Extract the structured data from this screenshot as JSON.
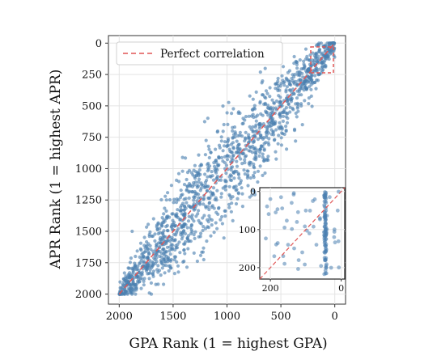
{
  "chart_data": {
    "type": "scatter",
    "xlabel": "GPA Rank (1 = highest GPA)",
    "ylabel": "APR Rank (1 = highest APR)",
    "xlim": [
      2100,
      -100
    ],
    "ylim": [
      2080,
      -60
    ],
    "x_inverted": true,
    "y_inverted": true,
    "xticks": [
      2000,
      1500,
      1000,
      500,
      0
    ],
    "yticks": [
      0,
      250,
      500,
      750,
      1000,
      1250,
      1500,
      1750,
      2000
    ],
    "grid": true,
    "legend": {
      "position": "top-left",
      "entries": [
        {
          "label": "Perfect correlation",
          "style": "dashed",
          "color": "#e05555"
        }
      ]
    },
    "series": [
      {
        "color": "#4a7fb0",
        "points": [
          [
            1990,
            1995
          ],
          [
            1960,
            1930
          ],
          [
            1900,
            1870
          ],
          [
            1850,
            1700
          ],
          [
            1820,
            1880
          ],
          [
            1750,
            1620
          ],
          [
            1700,
            1790
          ],
          [
            1650,
            1450
          ],
          [
            1600,
            1560
          ],
          [
            1550,
            1380
          ],
          [
            1500,
            1490
          ],
          [
            1450,
            1250
          ],
          [
            1400,
            1330
          ],
          [
            1350,
            1120
          ],
          [
            1300,
            1230
          ],
          [
            1250,
            980
          ],
          [
            1200,
            1110
          ],
          [
            1150,
            870
          ],
          [
            1100,
            1000
          ],
          [
            1050,
            780
          ],
          [
            1000,
            900
          ],
          [
            950,
            700
          ],
          [
            900,
            820
          ],
          [
            850,
            600
          ],
          [
            800,
            730
          ],
          [
            750,
            520
          ],
          [
            700,
            650
          ],
          [
            650,
            430
          ],
          [
            600,
            560
          ],
          [
            550,
            360
          ],
          [
            500,
            470
          ],
          [
            450,
            280
          ],
          [
            400,
            390
          ],
          [
            350,
            200
          ],
          [
            300,
            300
          ],
          [
            250,
            130
          ],
          [
            200,
            220
          ],
          [
            150,
            70
          ],
          [
            100,
            150
          ],
          [
            60,
            30
          ],
          [
            1880,
            1500
          ],
          [
            1400,
            1650
          ],
          [
            1100,
            1350
          ],
          [
            700,
            900
          ],
          [
            300,
            650
          ]
        ]
      },
      {
        "name": "Perfect correlation",
        "type": "line",
        "x": [
          2000,
          0
        ],
        "y": [
          2000,
          0
        ]
      }
    ],
    "inset": {
      "xlim": [
        230,
        -10
      ],
      "ylim": [
        230,
        -10
      ],
      "xticks": [
        200,
        0
      ],
      "yticks": [
        0,
        100,
        200
      ],
      "vertical_cluster_x": 45,
      "points": [
        [
          200,
          20
        ],
        [
          185,
          55
        ],
        [
          170,
          15
        ],
        [
          160,
          95
        ],
        [
          150,
          140
        ],
        [
          140,
          30
        ],
        [
          125,
          80
        ],
        [
          110,
          160
        ],
        [
          100,
          50
        ],
        [
          90,
          110
        ],
        [
          80,
          25
        ],
        [
          70,
          140
        ],
        [
          60,
          70
        ],
        [
          48,
          10
        ],
        [
          47,
          40
        ],
        [
          46,
          60
        ],
        [
          45,
          85
        ],
        [
          45,
          105
        ],
        [
          44,
          125
        ],
        [
          44,
          150
        ],
        [
          43,
          175
        ],
        [
          43,
          200
        ],
        [
          42,
          215
        ],
        [
          20,
          120
        ],
        [
          10,
          50
        ]
      ]
    }
  }
}
